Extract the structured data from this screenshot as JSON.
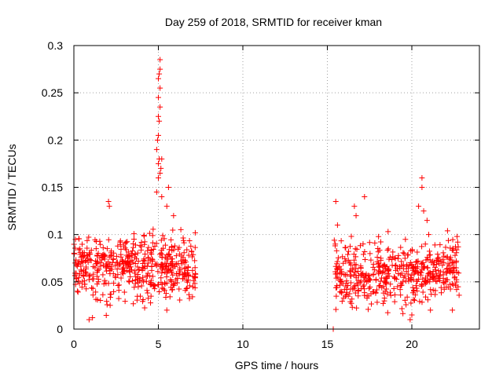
{
  "chart_data": {
    "type": "scatter",
    "title": "Day 259 of 2018, SRMTID for receiver kman",
    "xlabel": "GPS time / hours",
    "ylabel": "SRMTID / TECUs",
    "xlim": [
      0,
      24
    ],
    "ylim": [
      0,
      0.3
    ],
    "xticks": [
      0,
      5,
      10,
      15,
      20
    ],
    "xtick_labels": [
      "0",
      "5",
      "10",
      "15",
      "20"
    ],
    "yticks": [
      0,
      0.05,
      0.1,
      0.15,
      0.2,
      0.25,
      0.3
    ],
    "ytick_labels": [
      "0",
      "0.05",
      "0.1",
      "0.15",
      "0.2",
      "0.25",
      "0.3"
    ],
    "grid": true,
    "marker": "plus",
    "color": "#ff0000",
    "series": [
      {
        "name": "SRMTID",
        "segments": [
          {
            "x_start": 0.0,
            "x_end": 7.2,
            "y_center": 0.065,
            "y_spread": 0.035,
            "count": 520
          },
          {
            "x_start": 15.4,
            "x_end": 22.8,
            "y_center": 0.06,
            "y_spread": 0.035,
            "count": 500
          }
        ],
        "points": [
          [
            4.9,
            0.145
          ],
          [
            5.0,
            0.16
          ],
          [
            5.0,
            0.175
          ],
          [
            5.05,
            0.18
          ],
          [
            4.95,
            0.2
          ],
          [
            5.0,
            0.205
          ],
          [
            5.05,
            0.22
          ],
          [
            5.0,
            0.225
          ],
          [
            5.1,
            0.235
          ],
          [
            5.0,
            0.245
          ],
          [
            5.1,
            0.255
          ],
          [
            5.0,
            0.265
          ],
          [
            5.05,
            0.27
          ],
          [
            5.1,
            0.275
          ],
          [
            5.1,
            0.285
          ],
          [
            5.15,
            0.17
          ],
          [
            5.2,
            0.18
          ],
          [
            4.9,
            0.19
          ],
          [
            5.1,
            0.165
          ],
          [
            5.2,
            0.14
          ],
          [
            5.6,
            0.15
          ],
          [
            5.5,
            0.13
          ],
          [
            5.9,
            0.12
          ],
          [
            2.1,
            0.13
          ],
          [
            2.05,
            0.135
          ],
          [
            16.6,
            0.13
          ],
          [
            17.2,
            0.14
          ],
          [
            16.7,
            0.12
          ],
          [
            20.6,
            0.16
          ],
          [
            20.6,
            0.15
          ],
          [
            20.4,
            0.13
          ],
          [
            20.7,
            0.125
          ],
          [
            20.9,
            0.115
          ],
          [
            21.0,
            0.1
          ],
          [
            20.8,
            0.09
          ],
          [
            15.5,
            0.135
          ],
          [
            15.6,
            0.11
          ],
          [
            15.35,
            0.0
          ],
          [
            0.9,
            0.01
          ],
          [
            1.1,
            0.012
          ],
          [
            19.9,
            0.01
          ],
          [
            20.0,
            0.015
          ],
          [
            21.1,
            0.02
          ],
          [
            22.4,
            0.02
          ],
          [
            5.5,
            0.02
          ]
        ]
      }
    ]
  }
}
